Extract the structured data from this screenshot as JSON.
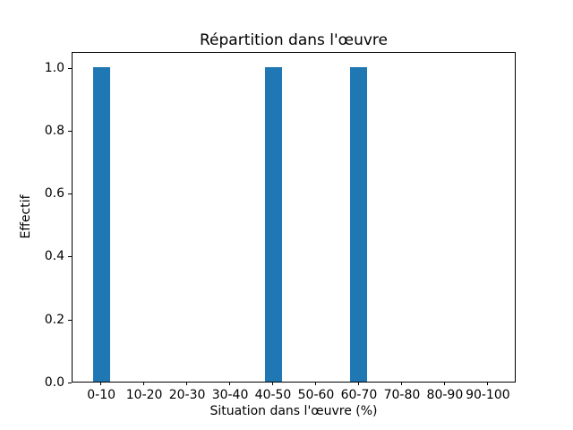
{
  "chart_data": {
    "type": "bar",
    "title": "Répartition dans l'œuvre",
    "xlabel": "Situation dans l'œuvre (%)",
    "ylabel": "Effectif",
    "categories": [
      "0-10",
      "10-20",
      "20-30",
      "30-40",
      "40-50",
      "50-60",
      "60-70",
      "70-80",
      "80-90",
      "90-100"
    ],
    "values": [
      1,
      0,
      0,
      0,
      1,
      0,
      1,
      0,
      0,
      0
    ],
    "yticks": [
      0.0,
      0.2,
      0.4,
      0.6,
      0.8,
      1.0
    ],
    "ylim": [
      0,
      1.05
    ],
    "xlim": [
      -0.67,
      9.67
    ],
    "bar_width_units": 0.4,
    "bar_color": "#1f77b4",
    "axis_color": "#000000",
    "background_color": "#ffffff",
    "grid": false,
    "legend": null
  }
}
